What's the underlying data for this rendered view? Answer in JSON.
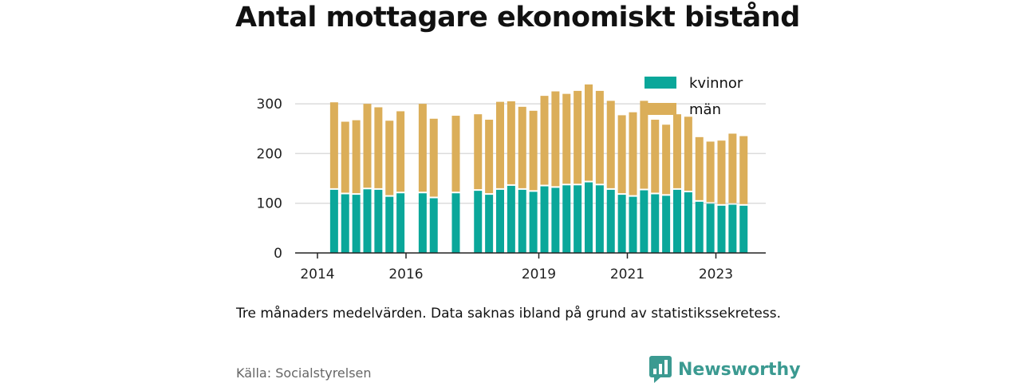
{
  "title": "Antal mottagare ekonomiskt bistånd",
  "note": "Tre månaders medelvärden. Data saknas ibland på grund av statistikssekretess.",
  "source": "Källa: Socialstyrelsen",
  "brand": {
    "name": "Newsworthy",
    "icon": "bar-chart-speech-bubble-icon",
    "color": "#3b9a91"
  },
  "colors": {
    "kvinnor": "#0aa79a",
    "man": "#dbae59"
  },
  "chart_data": {
    "type": "bar",
    "stacked": true,
    "x": [
      2014.25,
      2014.5,
      2014.75,
      2015.0,
      2015.25,
      2015.5,
      2015.75,
      2016.0,
      2016.25,
      2016.5,
      2016.75,
      2017.0,
      2017.25,
      2017.5,
      2017.75,
      2018.0,
      2018.25,
      2018.5,
      2018.75,
      2019.0,
      2019.25,
      2019.5,
      2019.75,
      2020.0,
      2020.25,
      2020.5,
      2020.75,
      2021.0,
      2021.25,
      2021.5,
      2021.75,
      2022.0,
      2022.25,
      2022.5,
      2022.75,
      2023.0,
      2023.25,
      2023.5,
      2023.75
    ],
    "series": [
      {
        "name": "kvinnor",
        "values": [
          127,
          118,
          117,
          128,
          127,
          113,
          120,
          null,
          120,
          110,
          null,
          120,
          null,
          125,
          117,
          127,
          135,
          127,
          123,
          134,
          131,
          136,
          136,
          142,
          136,
          127,
          117,
          113,
          126,
          118,
          115,
          127,
          122,
          103,
          99,
          95,
          97,
          95,
          null
        ]
      },
      {
        "name": "män",
        "values": [
          176,
          146,
          150,
          172,
          166,
          153,
          165,
          null,
          180,
          160,
          null,
          156,
          null,
          154,
          151,
          177,
          170,
          167,
          163,
          182,
          194,
          184,
          190,
          197,
          190,
          179,
          160,
          170,
          180,
          150,
          143,
          152,
          152,
          130,
          125,
          131,
          143,
          140,
          null
        ]
      }
    ],
    "xticks": [
      "2014",
      "2016",
      "2019",
      "2021",
      "2023"
    ],
    "yticks": [
      "0",
      "100",
      "200",
      "300"
    ],
    "ylim": [
      0,
      340
    ],
    "legend": {
      "position": "top-right",
      "labels": [
        "kvinnor",
        "män"
      ]
    },
    "grid": true
  }
}
